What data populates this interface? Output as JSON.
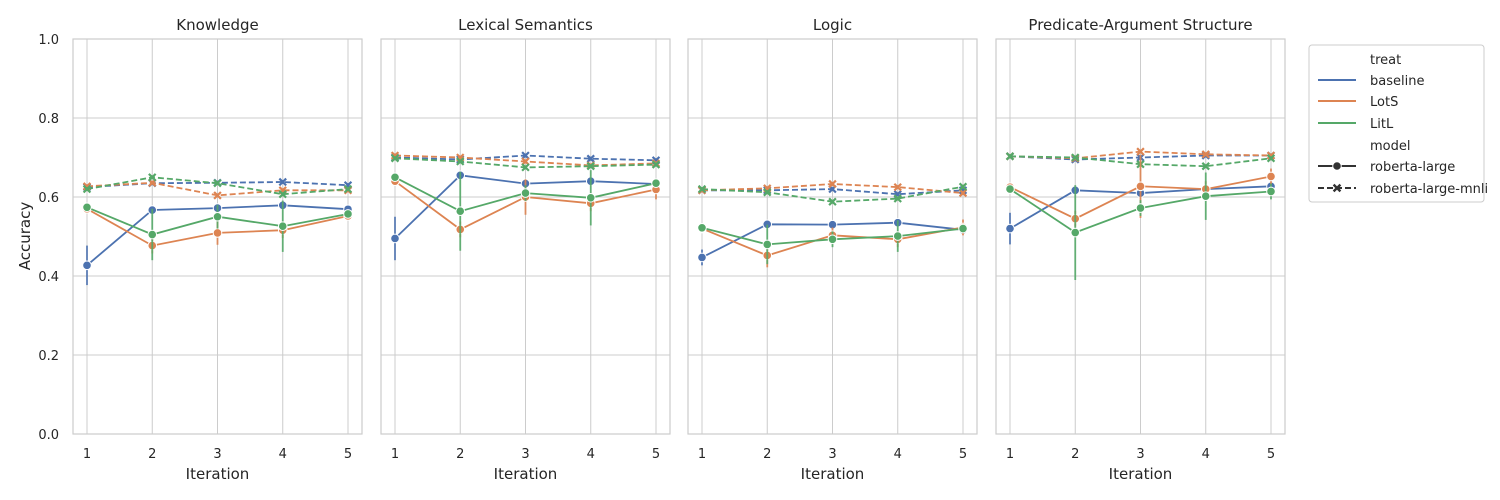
{
  "chart_data": {
    "type": "line",
    "layout": "facet-grid-4-columns",
    "shared_y_axis": true,
    "ylabel": "Accuracy",
    "xlabel": "Iteration",
    "ylim": [
      0,
      1
    ],
    "yticks": [
      0.0,
      0.2,
      0.4,
      0.6,
      0.8,
      1.0
    ],
    "ytick_labels": [
      "0.0",
      "0.2",
      "0.4",
      "0.6",
      "0.8",
      "1.0"
    ],
    "x": [
      1,
      2,
      3,
      4,
      5
    ],
    "xtick_labels": [
      "1",
      "2",
      "3",
      "4",
      "5"
    ],
    "grid": true,
    "legend_placement": "outside-right",
    "legend": {
      "hue_title": "treat",
      "hue_entries": [
        {
          "key": "baseline",
          "label": "baseline",
          "color": "#4c72b0"
        },
        {
          "key": "LotS",
          "label": "LotS",
          "color": "#dd8452"
        },
        {
          "key": "LitL",
          "label": "LitL",
          "color": "#55a868"
        }
      ],
      "style_title": "model",
      "style_entries": [
        {
          "key": "roberta-large",
          "label": "roberta-large",
          "line": "solid",
          "marker": "circle"
        },
        {
          "key": "roberta-large-mnli",
          "label": "roberta-large-mnli",
          "line": "dashed",
          "marker": "x"
        }
      ]
    },
    "panels": [
      {
        "title": "Knowledge",
        "series": [
          {
            "treat": "baseline",
            "model": "roberta-large",
            "values": [
              0.427,
              0.567,
              0.572,
              0.579,
              0.569
            ],
            "err": [
              0.05,
              0.01,
              0.01,
              0.01,
              0.01
            ]
          },
          {
            "treat": "LotS",
            "model": "roberta-large",
            "values": [
              0.57,
              0.477,
              0.509,
              0.516,
              0.552
            ],
            "err": [
              0.01,
              0.02,
              0.03,
              0.02,
              0.01
            ]
          },
          {
            "treat": "LitL",
            "model": "roberta-large",
            "values": [
              0.574,
              0.505,
              0.55,
              0.526,
              0.557
            ],
            "err": [
              0.01,
              0.065,
              0.03,
              0.065,
              0.01
            ]
          },
          {
            "treat": "baseline",
            "model": "roberta-large-mnli",
            "values": [
              0.625,
              0.635,
              0.636,
              0.638,
              0.63
            ],
            "err": [
              0.005,
              0.005,
              0.005,
              0.005,
              0.005
            ]
          },
          {
            "treat": "LotS",
            "model": "roberta-large-mnli",
            "values": [
              0.627,
              0.636,
              0.604,
              0.617,
              0.617
            ],
            "err": [
              0.005,
              0.005,
              0.005,
              0.005,
              0.005
            ]
          },
          {
            "treat": "LitL",
            "model": "roberta-large-mnli",
            "values": [
              0.62,
              0.65,
              0.635,
              0.607,
              0.62
            ],
            "err": [
              0.005,
              0.005,
              0.005,
              0.005,
              0.005
            ]
          }
        ]
      },
      {
        "title": "Lexical Semantics",
        "series": [
          {
            "treat": "baseline",
            "model": "roberta-large",
            "values": [
              0.495,
              0.655,
              0.634,
              0.64,
              0.633
            ],
            "err": [
              0.055,
              0.01,
              0.01,
              0.01,
              0.01
            ]
          },
          {
            "treat": "LotS",
            "model": "roberta-large",
            "values": [
              0.64,
              0.518,
              0.6,
              0.584,
              0.619
            ],
            "err": [
              0.01,
              0.02,
              0.045,
              0.02,
              0.025
            ]
          },
          {
            "treat": "LitL",
            "model": "roberta-large",
            "values": [
              0.65,
              0.564,
              0.61,
              0.598,
              0.635
            ],
            "err": [
              0.01,
              0.1,
              0.02,
              0.07,
              0.01
            ]
          },
          {
            "treat": "baseline",
            "model": "roberta-large-mnli",
            "values": [
              0.7,
              0.695,
              0.705,
              0.697,
              0.693
            ],
            "err": [
              0.005,
              0.005,
              0.005,
              0.005,
              0.005
            ]
          },
          {
            "treat": "LotS",
            "model": "roberta-large-mnli",
            "values": [
              0.705,
              0.7,
              0.69,
              0.68,
              0.685
            ],
            "err": [
              0.005,
              0.005,
              0.005,
              0.005,
              0.005
            ]
          },
          {
            "treat": "LitL",
            "model": "roberta-large-mnli",
            "values": [
              0.698,
              0.69,
              0.675,
              0.678,
              0.682
            ],
            "err": [
              0.005,
              0.005,
              0.005,
              0.005,
              0.005
            ]
          }
        ]
      },
      {
        "title": "Logic",
        "series": [
          {
            "treat": "baseline",
            "model": "roberta-large",
            "values": [
              0.447,
              0.531,
              0.53,
              0.535,
              0.517
            ],
            "err": [
              0.02,
              0.01,
              0.01,
              0.01,
              0.01
            ]
          },
          {
            "treat": "LotS",
            "model": "roberta-large",
            "values": [
              0.52,
              0.452,
              0.503,
              0.493,
              0.523
            ],
            "err": [
              0.01,
              0.03,
              0.02,
              0.02,
              0.02
            ]
          },
          {
            "treat": "LitL",
            "model": "roberta-large",
            "values": [
              0.522,
              0.48,
              0.493,
              0.501,
              0.52
            ],
            "err": [
              0.01,
              0.05,
              0.02,
              0.04,
              0.01
            ]
          },
          {
            "treat": "baseline",
            "model": "roberta-large-mnli",
            "values": [
              0.617,
              0.617,
              0.62,
              0.607,
              0.617
            ],
            "err": [
              0.005,
              0.005,
              0.005,
              0.005,
              0.005
            ]
          },
          {
            "treat": "LotS",
            "model": "roberta-large-mnli",
            "values": [
              0.617,
              0.622,
              0.633,
              0.625,
              0.61
            ],
            "err": [
              0.005,
              0.005,
              0.005,
              0.005,
              0.005
            ]
          },
          {
            "treat": "LitL",
            "model": "roberta-large-mnli",
            "values": [
              0.62,
              0.612,
              0.588,
              0.596,
              0.626
            ],
            "err": [
              0.005,
              0.005,
              0.005,
              0.005,
              0.005
            ]
          }
        ]
      },
      {
        "title": "Predicate-Argument Structure",
        "series": [
          {
            "treat": "baseline",
            "model": "roberta-large",
            "values": [
              0.52,
              0.617,
              0.61,
              0.62,
              0.627
            ],
            "err": [
              0.04,
              0.01,
              0.01,
              0.01,
              0.01
            ]
          },
          {
            "treat": "LotS",
            "model": "roberta-large",
            "values": [
              0.625,
              0.545,
              0.627,
              0.62,
              0.652
            ],
            "err": [
              0.01,
              0.02,
              0.08,
              0.02,
              0.02
            ]
          },
          {
            "treat": "LitL",
            "model": "roberta-large",
            "values": [
              0.62,
              0.51,
              0.572,
              0.602,
              0.614
            ],
            "err": [
              0.01,
              0.12,
              0.02,
              0.06,
              0.02
            ]
          },
          {
            "treat": "baseline",
            "model": "roberta-large-mnli",
            "values": [
              0.703,
              0.695,
              0.7,
              0.705,
              0.705
            ],
            "err": [
              0.005,
              0.005,
              0.005,
              0.005,
              0.005
            ]
          },
          {
            "treat": "LotS",
            "model": "roberta-large-mnli",
            "values": [
              0.703,
              0.698,
              0.715,
              0.708,
              0.705
            ],
            "err": [
              0.005,
              0.005,
              0.005,
              0.005,
              0.005
            ]
          },
          {
            "treat": "LitL",
            "model": "roberta-large-mnli",
            "values": [
              0.703,
              0.7,
              0.683,
              0.678,
              0.698
            ],
            "err": [
              0.005,
              0.005,
              0.005,
              0.005,
              0.005
            ]
          }
        ]
      }
    ]
  }
}
